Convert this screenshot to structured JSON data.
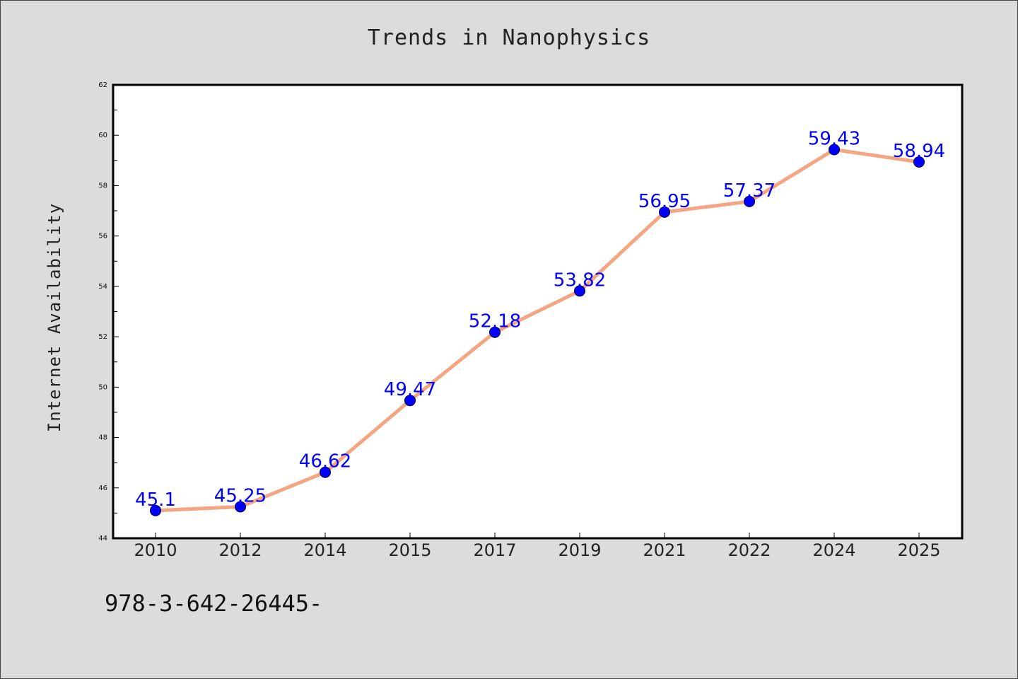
{
  "chart_data": {
    "type": "line",
    "title": "Trends in Nanophysics",
    "xlabel": "",
    "ylabel": "Internet Availability",
    "categories": [
      "2010",
      "2012",
      "2014",
      "2015",
      "2017",
      "2019",
      "2021",
      "2022",
      "2024",
      "2025"
    ],
    "series": [
      {
        "values": [
          45.1,
          45.25,
          46.62,
          49.47,
          52.18,
          53.82,
          56.95,
          57.37,
          59.43,
          58.94
        ],
        "line_color": "#f4a582",
        "marker_color": "#0000ff"
      }
    ],
    "data_labels": [
      "45.1",
      "45.25",
      "46.62",
      "49.47",
      "52.18",
      "53.82",
      "56.95",
      "57.37",
      "59.43",
      "58.94"
    ],
    "data_label_color": "#0000ff",
    "ylim": [
      44,
      62
    ],
    "y_ticks": [
      44,
      46,
      48,
      50,
      52,
      54,
      56,
      58,
      60,
      62
    ],
    "grid": false,
    "legend": "none"
  },
  "footer": {
    "code": "978-3-642-26445-"
  }
}
